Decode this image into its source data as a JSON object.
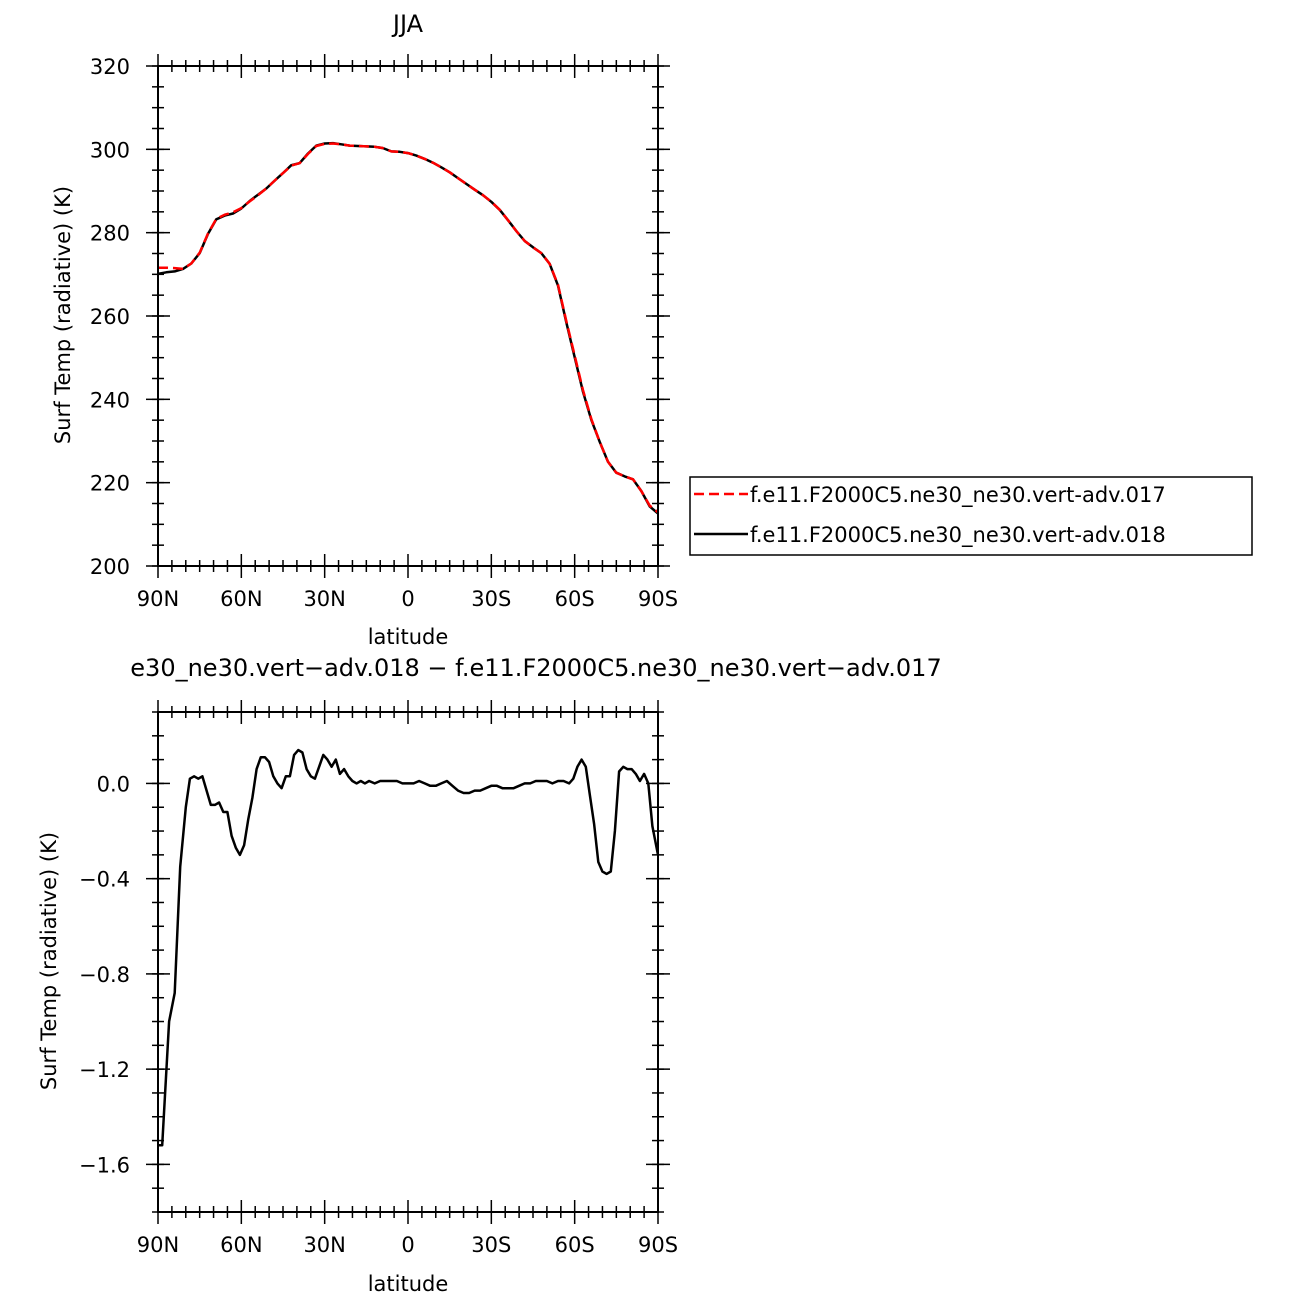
{
  "chart_data": [
    {
      "type": "line",
      "title": "JJA",
      "xlabel": "latitude",
      "ylabel": "Surf Temp (radiative) (K)",
      "xlim": [
        90,
        -90
      ],
      "ylim": [
        200,
        320
      ],
      "x_ticks": [
        90,
        60,
        30,
        0,
        -30,
        -60,
        -90
      ],
      "x_tick_labels": [
        "90N",
        "60N",
        "30N",
        "0",
        "30S",
        "60S",
        "90S"
      ],
      "y_ticks": [
        200,
        220,
        240,
        260,
        280,
        300,
        320
      ],
      "y_tick_labels": [
        "200",
        "220",
        "240",
        "260",
        "280",
        "300",
        "320"
      ],
      "legend_position": "right",
      "series": [
        {
          "name": "f.e11.F2000C5.ne30_ne30.vert-adv.017",
          "color": "#ff0000",
          "dash": "dashed",
          "x": [
            90,
            87,
            84,
            81,
            78,
            75,
            72,
            69,
            66,
            63,
            60,
            57,
            54,
            51,
            48,
            45,
            42,
            39,
            36,
            33,
            30,
            27,
            24,
            21,
            18,
            15,
            12,
            9,
            6,
            3,
            0,
            -3,
            -6,
            -9,
            -12,
            -15,
            -18,
            -21,
            -24,
            -27,
            -30,
            -33,
            -36,
            -39,
            -42,
            -45,
            -48,
            -51,
            -54,
            -57,
            -60,
            -63,
            -66,
            -69,
            -72,
            -75,
            -78,
            -81,
            -84,
            -87,
            -90
          ],
          "values": [
            271.6,
            271.6,
            271.5,
            271.3,
            272.6,
            275.2,
            279.8,
            283.3,
            284.3,
            284.9,
            285.9,
            287.5,
            289.0,
            290.6,
            292.5,
            294.3,
            296.1,
            296.7,
            298.9,
            300.8,
            301.3,
            301.4,
            301.2,
            300.9,
            300.8,
            300.7,
            300.6,
            300.3,
            299.5,
            299.4,
            299.1,
            298.5,
            297.7,
            296.8,
            295.7,
            294.5,
            293.1,
            291.7,
            290.3,
            289.0,
            287.4,
            285.5,
            283.0,
            280.4,
            278.0,
            276.5,
            275.1,
            272.5,
            267.5,
            258.8,
            250.5,
            242.2,
            235.3,
            229.8,
            225.0,
            222.4,
            221.5,
            220.8,
            218.0,
            214.5,
            212.9
          ]
        },
        {
          "name": "f.e11.F2000C5.ne30_ne30.vert-adv.018",
          "color": "#000000",
          "dash": "solid",
          "x": [
            90,
            87,
            84,
            81,
            78,
            75,
            72,
            69,
            66,
            63,
            60,
            57,
            54,
            51,
            48,
            45,
            42,
            39,
            36,
            33,
            30,
            27,
            24,
            21,
            18,
            15,
            12,
            9,
            6,
            3,
            0,
            -3,
            -6,
            -9,
            -12,
            -15,
            -18,
            -21,
            -24,
            -27,
            -30,
            -33,
            -36,
            -39,
            -42,
            -45,
            -48,
            -51,
            -54,
            -57,
            -60,
            -63,
            -66,
            -69,
            -72,
            -75,
            -78,
            -81,
            -84,
            -87,
            -90
          ],
          "values": [
            270.1,
            270.5,
            270.7,
            271.3,
            272.6,
            275.1,
            279.7,
            283.2,
            284.1,
            284.6,
            285.8,
            287.6,
            289.1,
            290.6,
            292.5,
            294.3,
            296.2,
            296.7,
            299.0,
            300.9,
            301.4,
            301.5,
            301.2,
            300.9,
            300.8,
            300.7,
            300.6,
            300.3,
            299.5,
            299.4,
            299.1,
            298.5,
            297.7,
            296.8,
            295.7,
            294.5,
            293.1,
            291.7,
            290.3,
            289.0,
            287.4,
            285.5,
            283.0,
            280.4,
            278.0,
            276.5,
            275.1,
            272.5,
            267.3,
            258.5,
            250.1,
            241.8,
            235.1,
            229.8,
            225.0,
            222.4,
            221.5,
            220.8,
            218.0,
            214.3,
            212.6
          ]
        }
      ]
    },
    {
      "type": "line",
      "title": "e30_ne30.vert−adv.018 − f.e11.F2000C5.ne30_ne30.vert−adv.017",
      "xlabel": "latitude",
      "ylabel": "Surf Temp (radiative) (K)",
      "xlim": [
        90,
        -90
      ],
      "ylim": [
        -1.8,
        0.3
      ],
      "x_ticks": [
        90,
        60,
        30,
        0,
        -30,
        -60,
        -90
      ],
      "x_tick_labels": [
        "90N",
        "60N",
        "30N",
        "0",
        "30S",
        "60S",
        "90S"
      ],
      "y_ticks": [
        -1.6,
        -1.2,
        -0.8,
        -0.4,
        0.0
      ],
      "y_tick_labels": [
        "−1.6",
        "−1.2",
        "−0.8",
        "−0.4",
        "0.0"
      ],
      "series": [
        {
          "color": "#000000",
          "dash": "solid",
          "x": [
            90,
            88.5,
            86,
            84,
            82,
            80,
            78.5,
            77,
            75.5,
            74,
            72.5,
            71,
            69.5,
            68,
            66.5,
            65,
            63.5,
            62,
            60.5,
            59,
            57.5,
            56,
            54.5,
            53,
            51.5,
            50,
            48.5,
            47,
            45.5,
            44,
            42.5,
            41,
            39.5,
            38,
            36.5,
            35,
            33.5,
            32,
            30.5,
            29,
            27.5,
            26,
            24.5,
            23,
            21.5,
            20,
            18.5,
            17,
            15.5,
            14,
            12,
            10,
            8,
            6,
            4,
            2,
            0,
            -2,
            -4,
            -6,
            -8,
            -10,
            -12,
            -14,
            -16,
            -18,
            -20,
            -22,
            -24,
            -26,
            -28,
            -30,
            -32,
            -34,
            -36,
            -38,
            -40,
            -42,
            -44,
            -46,
            -48,
            -50,
            -52,
            -54,
            -56,
            -58,
            -59.5,
            -61,
            -62.5,
            -64,
            -65.5,
            -67,
            -68.5,
            -70,
            -71.5,
            -73,
            -74.5,
            -76,
            -77.5,
            -79,
            -80.5,
            -82,
            -83.5,
            -85,
            -86.5,
            -88,
            -90
          ],
          "values": [
            -1.52,
            -1.52,
            -1.0,
            -0.88,
            -0.35,
            -0.1,
            0.02,
            0.03,
            0.02,
            0.03,
            -0.03,
            -0.09,
            -0.09,
            -0.08,
            -0.12,
            -0.12,
            -0.22,
            -0.27,
            -0.3,
            -0.26,
            -0.15,
            -0.06,
            0.06,
            0.11,
            0.11,
            0.09,
            0.03,
            0.0,
            -0.02,
            0.03,
            0.03,
            0.12,
            0.14,
            0.13,
            0.06,
            0.03,
            0.02,
            0.07,
            0.12,
            0.1,
            0.07,
            0.1,
            0.04,
            0.06,
            0.03,
            0.01,
            0.0,
            0.01,
            0.0,
            0.01,
            0.0,
            0.01,
            0.01,
            0.01,
            0.01,
            0.0,
            0.0,
            0.0,
            0.01,
            0.0,
            -0.01,
            -0.01,
            0.0,
            0.01,
            -0.01,
            -0.03,
            -0.04,
            -0.04,
            -0.03,
            -0.03,
            -0.02,
            -0.01,
            -0.01,
            -0.02,
            -0.02,
            -0.02,
            -0.01,
            0.0,
            0.0,
            0.01,
            0.01,
            0.01,
            0.0,
            0.01,
            0.01,
            0.0,
            0.02,
            0.07,
            0.1,
            0.07,
            -0.05,
            -0.17,
            -0.33,
            -0.37,
            -0.38,
            -0.37,
            -0.2,
            0.05,
            0.07,
            0.06,
            0.06,
            0.04,
            0.01,
            0.04,
            0.0,
            -0.18,
            -0.3
          ]
        }
      ]
    }
  ]
}
